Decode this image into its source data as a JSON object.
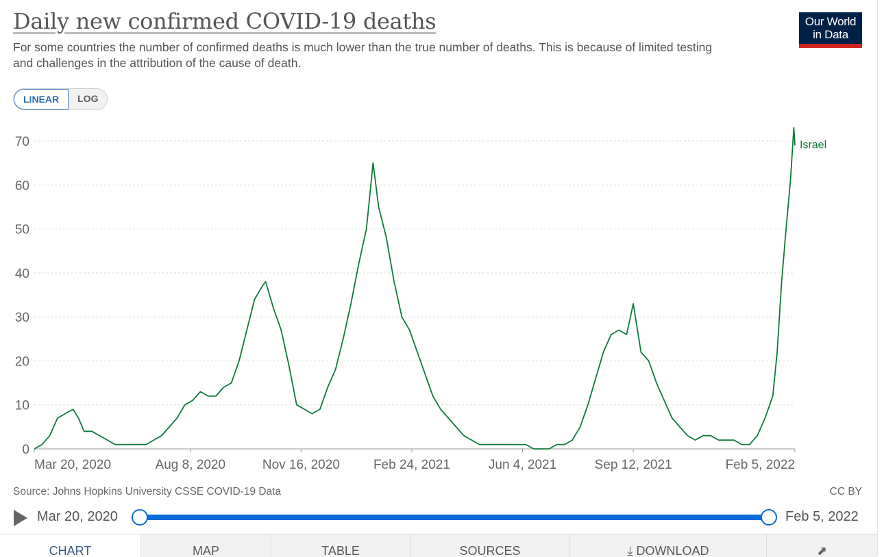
{
  "header": {
    "title": "Daily new confirmed COVID-19 deaths",
    "subtitle": "For some countries the number of confirmed deaths is much lower than the true number of deaths. This is because of limited testing and challenges in the attribution of the cause of death.",
    "logo_line1": "Our World",
    "logo_line2": "in Data"
  },
  "scale_toggle": {
    "linear_label": "LINEAR",
    "log_label": "LOG",
    "selected": "LINEAR"
  },
  "footer": {
    "source": "Source: Johns Hopkins University CSSE COVID-19 Data",
    "license": "CC BY"
  },
  "timeline": {
    "start_label": "Mar 20, 2020",
    "end_label": "Feb 5, 2022"
  },
  "tabs": [
    {
      "label": "CHART"
    },
    {
      "label": "MAP"
    },
    {
      "label": "TABLE"
    },
    {
      "label": "SOURCES"
    },
    {
      "label": "DOWNLOAD",
      "icon": "download-icon"
    },
    {
      "label": "",
      "icon": "share-icon"
    }
  ],
  "colors": {
    "series": "#0e7a3a",
    "accent": "#0a6cd8",
    "logo_bg": "#002147",
    "logo_bar": "#ce261e"
  },
  "chart_data": {
    "type": "line",
    "title": "Daily new confirmed COVID-19 deaths",
    "x_ticks": [
      "Mar 20, 2020",
      "Aug 8, 2020",
      "Nov 16, 2020",
      "Feb 24, 2021",
      "Jun 4, 2021",
      "Sep 12, 2021",
      "Feb 5, 2022"
    ],
    "y_ticks": [
      0,
      10,
      20,
      30,
      40,
      50,
      60,
      70
    ],
    "ylim": [
      0,
      70
    ],
    "xlim": [
      "2020-03-20",
      "2022-02-05"
    ],
    "grid": "horizontal dashed",
    "series": [
      {
        "name": "Israel",
        "points": [
          [
            "2020-03-20",
            0
          ],
          [
            "2020-03-27",
            1
          ],
          [
            "2020-04-03",
            3
          ],
          [
            "2020-04-10",
            7
          ],
          [
            "2020-04-17",
            8
          ],
          [
            "2020-04-24",
            9
          ],
          [
            "2020-04-29",
            7
          ],
          [
            "2020-05-04",
            4
          ],
          [
            "2020-05-11",
            4
          ],
          [
            "2020-05-18",
            3
          ],
          [
            "2020-05-25",
            2
          ],
          [
            "2020-06-01",
            1
          ],
          [
            "2020-06-08",
            1
          ],
          [
            "2020-06-15",
            1
          ],
          [
            "2020-06-22",
            1
          ],
          [
            "2020-06-29",
            1
          ],
          [
            "2020-07-06",
            2
          ],
          [
            "2020-07-13",
            3
          ],
          [
            "2020-07-20",
            5
          ],
          [
            "2020-07-27",
            7
          ],
          [
            "2020-08-03",
            10
          ],
          [
            "2020-08-10",
            11
          ],
          [
            "2020-08-17",
            13
          ],
          [
            "2020-08-24",
            12
          ],
          [
            "2020-08-31",
            12
          ],
          [
            "2020-09-07",
            14
          ],
          [
            "2020-09-14",
            15
          ],
          [
            "2020-09-21",
            20
          ],
          [
            "2020-09-28",
            27
          ],
          [
            "2020-10-05",
            34
          ],
          [
            "2020-10-12",
            37
          ],
          [
            "2020-10-15",
            38
          ],
          [
            "2020-10-22",
            32
          ],
          [
            "2020-10-29",
            27
          ],
          [
            "2020-11-05",
            19
          ],
          [
            "2020-11-12",
            10
          ],
          [
            "2020-11-19",
            9
          ],
          [
            "2020-11-26",
            8
          ],
          [
            "2020-12-03",
            9
          ],
          [
            "2020-12-10",
            14
          ],
          [
            "2020-12-17",
            18
          ],
          [
            "2020-12-24",
            25
          ],
          [
            "2020-12-31",
            33
          ],
          [
            "2021-01-07",
            42
          ],
          [
            "2021-01-14",
            50
          ],
          [
            "2021-01-20",
            65
          ],
          [
            "2021-01-25",
            55
          ],
          [
            "2021-02-01",
            48
          ],
          [
            "2021-02-08",
            38
          ],
          [
            "2021-02-15",
            30
          ],
          [
            "2021-02-22",
            27
          ],
          [
            "2021-03-01",
            22
          ],
          [
            "2021-03-08",
            17
          ],
          [
            "2021-03-15",
            12
          ],
          [
            "2021-03-22",
            9
          ],
          [
            "2021-03-29",
            7
          ],
          [
            "2021-04-05",
            5
          ],
          [
            "2021-04-12",
            3
          ],
          [
            "2021-04-19",
            2
          ],
          [
            "2021-04-26",
            1
          ],
          [
            "2021-05-03",
            1
          ],
          [
            "2021-05-10",
            1
          ],
          [
            "2021-05-17",
            1
          ],
          [
            "2021-05-24",
            1
          ],
          [
            "2021-05-31",
            1
          ],
          [
            "2021-06-07",
            1
          ],
          [
            "2021-06-14",
            0
          ],
          [
            "2021-06-21",
            0
          ],
          [
            "2021-06-28",
            0
          ],
          [
            "2021-07-05",
            1
          ],
          [
            "2021-07-12",
            1
          ],
          [
            "2021-07-19",
            2
          ],
          [
            "2021-07-26",
            5
          ],
          [
            "2021-08-02",
            10
          ],
          [
            "2021-08-09",
            16
          ],
          [
            "2021-08-16",
            22
          ],
          [
            "2021-08-23",
            26
          ],
          [
            "2021-08-30",
            27
          ],
          [
            "2021-09-06",
            26
          ],
          [
            "2021-09-12",
            33
          ],
          [
            "2021-09-19",
            22
          ],
          [
            "2021-09-26",
            20
          ],
          [
            "2021-10-03",
            15
          ],
          [
            "2021-10-10",
            11
          ],
          [
            "2021-10-17",
            7
          ],
          [
            "2021-10-24",
            5
          ],
          [
            "2021-10-31",
            3
          ],
          [
            "2021-11-07",
            2
          ],
          [
            "2021-11-14",
            3
          ],
          [
            "2021-11-21",
            3
          ],
          [
            "2021-11-28",
            2
          ],
          [
            "2021-12-05",
            2
          ],
          [
            "2021-12-12",
            2
          ],
          [
            "2021-12-19",
            1
          ],
          [
            "2021-12-26",
            1
          ],
          [
            "2022-01-02",
            3
          ],
          [
            "2022-01-09",
            7
          ],
          [
            "2022-01-16",
            12
          ],
          [
            "2022-01-20",
            22
          ],
          [
            "2022-01-24",
            38
          ],
          [
            "2022-01-28",
            50
          ],
          [
            "2022-02-01",
            61
          ],
          [
            "2022-02-04",
            73
          ],
          [
            "2022-02-05",
            69
          ]
        ]
      }
    ]
  }
}
